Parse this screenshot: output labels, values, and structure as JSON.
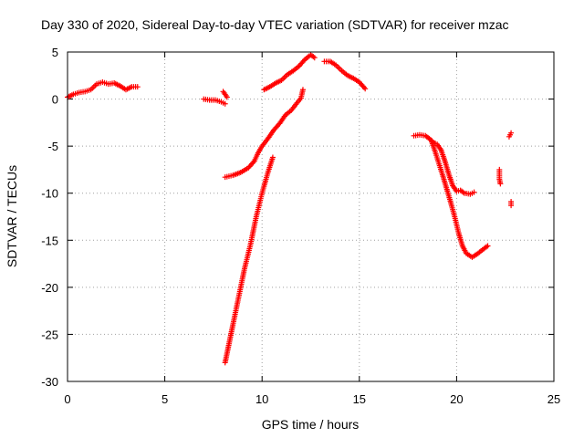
{
  "chart_data": {
    "type": "scatter",
    "title": "Day 330 of 2020, Sidereal Day-to-day VTEC variation (SDTVAR) for receiver mzac",
    "xlabel": "GPS time / hours",
    "ylabel": "SDTVAR / TECUs",
    "xlim": [
      0,
      25
    ],
    "ylim": [
      -30,
      5
    ],
    "xticks": [
      0,
      5,
      10,
      15,
      20,
      25
    ],
    "yticks": [
      -30,
      -25,
      -20,
      -15,
      -10,
      -5,
      0,
      5
    ],
    "grid": true,
    "marker": "plus",
    "color": "#ff0000",
    "series": [
      {
        "segments": [
          [
            [
              0.0,
              0.2
            ],
            [
              0.3,
              0.5
            ],
            [
              0.6,
              0.7
            ],
            [
              0.9,
              0.8
            ],
            [
              1.2,
              1.0
            ],
            [
              1.5,
              1.6
            ],
            [
              1.8,
              1.8
            ],
            [
              2.1,
              1.6
            ],
            [
              2.4,
              1.7
            ],
            [
              2.7,
              1.4
            ],
            [
              3.0,
              1.0
            ],
            [
              3.3,
              1.3
            ],
            [
              3.6,
              1.3
            ]
          ],
          [
            [
              7.0,
              0.0
            ],
            [
              7.3,
              -0.1
            ],
            [
              7.6,
              -0.1
            ],
            [
              7.9,
              -0.3
            ],
            [
              8.1,
              -0.5
            ]
          ],
          [
            [
              8.0,
              0.8
            ],
            [
              8.2,
              0.2
            ]
          ],
          [
            [
              8.1,
              -28.0
            ],
            [
              8.3,
              -26.0
            ],
            [
              8.5,
              -24.0
            ],
            [
              8.8,
              -21.0
            ],
            [
              9.1,
              -18.0
            ],
            [
              9.4,
              -15.5
            ],
            [
              9.7,
              -12.5
            ],
            [
              10.0,
              -10.0
            ],
            [
              10.3,
              -7.8
            ],
            [
              10.55,
              -6.2
            ]
          ],
          [
            [
              8.1,
              -8.3
            ],
            [
              8.5,
              -8.1
            ],
            [
              8.9,
              -7.8
            ],
            [
              9.3,
              -7.3
            ],
            [
              9.6,
              -6.6
            ],
            [
              9.8,
              -5.7
            ],
            [
              10.0,
              -5.0
            ],
            [
              10.3,
              -4.2
            ],
            [
              10.6,
              -3.3
            ],
            [
              10.9,
              -2.6
            ],
            [
              11.2,
              -1.7
            ],
            [
              11.5,
              -1.2
            ],
            [
              11.8,
              -0.4
            ],
            [
              12.0,
              0.1
            ],
            [
              12.1,
              1.0
            ]
          ],
          [
            [
              10.1,
              1.0
            ],
            [
              10.4,
              1.3
            ],
            [
              10.7,
              1.7
            ],
            [
              11.0,
              2.0
            ],
            [
              11.3,
              2.6
            ],
            [
              11.6,
              3.0
            ],
            [
              11.9,
              3.5
            ],
            [
              12.2,
              4.2
            ],
            [
              12.5,
              4.7
            ],
            [
              12.7,
              4.4
            ]
          ],
          [
            [
              13.2,
              4.0
            ],
            [
              13.5,
              4.0
            ],
            [
              13.8,
              3.6
            ],
            [
              14.1,
              3.0
            ],
            [
              14.4,
              2.5
            ],
            [
              14.7,
              2.2
            ],
            [
              15.0,
              1.8
            ],
            [
              15.3,
              1.1
            ]
          ],
          [
            [
              17.8,
              -3.9
            ],
            [
              18.1,
              -3.8
            ],
            [
              18.4,
              -3.9
            ],
            [
              18.6,
              -4.2
            ],
            [
              18.8,
              -4.6
            ],
            [
              19.0,
              -4.8
            ],
            [
              19.2,
              -5.4
            ],
            [
              19.4,
              -6.6
            ],
            [
              19.6,
              -8.0
            ],
            [
              19.8,
              -9.2
            ],
            [
              20.0,
              -9.8
            ],
            [
              20.2,
              -9.7
            ],
            [
              20.4,
              -10.0
            ],
            [
              20.7,
              -10.1
            ],
            [
              20.9,
              -9.9
            ]
          ],
          [
            [
              18.7,
              -4.4
            ],
            [
              18.9,
              -5.6
            ],
            [
              19.1,
              -6.9
            ],
            [
              19.3,
              -8.2
            ],
            [
              19.5,
              -9.6
            ],
            [
              19.7,
              -11.0
            ],
            [
              19.9,
              -12.5
            ],
            [
              20.1,
              -14.2
            ],
            [
              20.3,
              -15.6
            ],
            [
              20.5,
              -16.4
            ],
            [
              20.8,
              -16.8
            ],
            [
              21.1,
              -16.4
            ],
            [
              21.4,
              -15.9
            ],
            [
              21.6,
              -15.6
            ]
          ],
          [
            [
              22.2,
              -7.5
            ],
            [
              22.2,
              -8.5
            ],
            [
              22.25,
              -9.0
            ]
          ],
          [
            [
              22.7,
              -4.0
            ],
            [
              22.8,
              -3.6
            ]
          ],
          [
            [
              22.8,
              -10.9
            ],
            [
              22.8,
              -11.3
            ]
          ]
        ]
      }
    ]
  }
}
